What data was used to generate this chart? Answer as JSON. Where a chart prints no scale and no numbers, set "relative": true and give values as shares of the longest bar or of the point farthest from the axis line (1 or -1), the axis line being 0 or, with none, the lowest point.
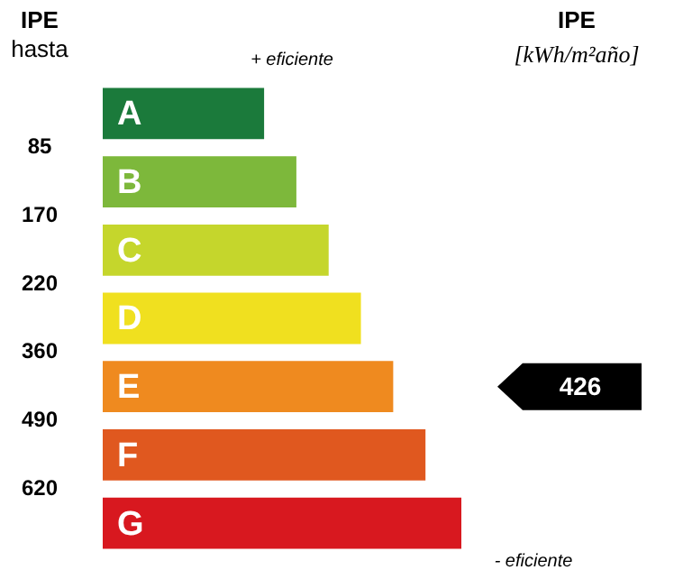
{
  "chart_data": {
    "type": "bar",
    "orientation": "horizontal",
    "relative": true,
    "ylabel": "IPE\nhasta",
    "y2label": "IPE\n[kWh/m²año]",
    "categories": [
      "A",
      "B",
      "C",
      "D",
      "E",
      "F",
      "G"
    ],
    "values": [
      0.45,
      0.54,
      0.63,
      0.72,
      0.81,
      0.9,
      1
    ],
    "colors": [
      "#1b7a3b",
      "#7db83b",
      "#c5d62c",
      "#f0e01f",
      "#ef8a1f",
      "#e0581f",
      "#d8181f"
    ],
    "annotations": [
      "+ eficiente",
      "- eficiente",
      "85",
      "170",
      "220",
      "360",
      "490",
      "620",
      "426"
    ]
  }
}
